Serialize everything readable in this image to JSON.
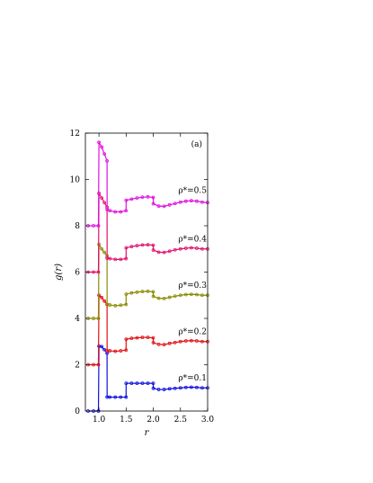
{
  "chart_data": {
    "type": "line",
    "panel_label": "(a)",
    "xlabel": "r",
    "ylabel": "g(r)",
    "xlim": [
      0.75,
      3.0
    ],
    "ylim": [
      0,
      12
    ],
    "xticks": [
      "1.0",
      "1.5",
      "2.0",
      "2.5",
      "3.0"
    ],
    "yticks": [
      "0",
      "2",
      "4",
      "6",
      "8",
      "10",
      "12"
    ],
    "series": [
      {
        "name": "ρ*=0.1",
        "color": "#1010e0",
        "offset": 0,
        "x": [
          0.8,
          0.9,
          0.99,
          1.0,
          1.05,
          1.1,
          1.149,
          1.15,
          1.2,
          1.3,
          1.4,
          1.499,
          1.5,
          1.6,
          1.7,
          1.8,
          1.9,
          1.999,
          2.0,
          2.1,
          2.2,
          2.3,
          2.4,
          2.5,
          2.6,
          2.7,
          2.8,
          2.9,
          3.0
        ],
        "y": [
          0,
          0,
          0,
          2.8,
          2.78,
          2.65,
          2.5,
          0.6,
          0.6,
          0.6,
          0.6,
          0.6,
          1.2,
          1.2,
          1.2,
          1.2,
          1.2,
          1.2,
          0.98,
          0.93,
          0.93,
          0.96,
          0.98,
          1.0,
          1.02,
          1.03,
          1.02,
          1.0,
          1.0
        ]
      },
      {
        "name": "ρ*=0.2",
        "color": "#e01010",
        "offset": 2,
        "x": [
          0.8,
          0.9,
          0.99,
          1.0,
          1.05,
          1.1,
          1.149,
          1.15,
          1.2,
          1.3,
          1.4,
          1.499,
          1.5,
          1.6,
          1.7,
          1.8,
          1.9,
          1.999,
          2.0,
          2.1,
          2.2,
          2.3,
          2.4,
          2.5,
          2.6,
          2.7,
          2.8,
          2.9,
          3.0
        ],
        "y": [
          2,
          2,
          2,
          5.0,
          4.9,
          4.75,
          4.6,
          2.6,
          2.6,
          2.58,
          2.6,
          2.63,
          3.1,
          3.14,
          3.16,
          3.18,
          3.18,
          3.16,
          2.95,
          2.88,
          2.87,
          2.92,
          2.96,
          3.0,
          3.03,
          3.04,
          3.03,
          3.0,
          3.0
        ]
      },
      {
        "name": "ρ*=0.3",
        "color": "#8a8a00",
        "offset": 4,
        "x": [
          0.8,
          0.9,
          0.99,
          1.0,
          1.05,
          1.1,
          1.149,
          1.15,
          1.2,
          1.3,
          1.4,
          1.499,
          1.5,
          1.6,
          1.7,
          1.8,
          1.9,
          1.999,
          2.0,
          2.1,
          2.2,
          2.3,
          2.4,
          2.5,
          2.6,
          2.7,
          2.8,
          2.9,
          3.0
        ],
        "y": [
          4,
          4,
          4,
          7.2,
          7.0,
          6.85,
          6.7,
          4.6,
          4.58,
          4.55,
          4.57,
          4.6,
          5.05,
          5.1,
          5.13,
          5.16,
          5.17,
          5.15,
          4.95,
          4.87,
          4.86,
          4.91,
          4.96,
          5.0,
          5.03,
          5.04,
          5.03,
          5.0,
          5.0
        ]
      },
      {
        "name": "ρ*=0.4",
        "color": "#e0106e",
        "offset": 6,
        "x": [
          0.8,
          0.9,
          0.99,
          1.0,
          1.05,
          1.1,
          1.149,
          1.15,
          1.2,
          1.3,
          1.4,
          1.499,
          1.5,
          1.6,
          1.7,
          1.8,
          1.9,
          1.999,
          2.0,
          2.1,
          2.2,
          2.3,
          2.4,
          2.5,
          2.6,
          2.7,
          2.8,
          2.9,
          3.0
        ],
        "y": [
          6,
          6,
          6,
          9.4,
          9.2,
          9.0,
          8.8,
          6.6,
          6.58,
          6.55,
          6.55,
          6.58,
          7.05,
          7.1,
          7.14,
          7.17,
          7.18,
          7.16,
          6.95,
          6.86,
          6.85,
          6.9,
          6.96,
          7.0,
          7.03,
          7.05,
          7.03,
          7.0,
          7.0
        ]
      },
      {
        "name": "ρ*=0.5",
        "color": "#e010e0",
        "offset": 8,
        "x": [
          0.8,
          0.9,
          0.99,
          1.0,
          1.05,
          1.1,
          1.149,
          1.15,
          1.2,
          1.3,
          1.4,
          1.499,
          1.5,
          1.6,
          1.7,
          1.8,
          1.9,
          1.999,
          2.0,
          2.1,
          2.2,
          2.3,
          2.4,
          2.5,
          2.6,
          2.7,
          2.8,
          2.9,
          3.0
        ],
        "y": [
          8,
          8,
          8,
          11.6,
          11.4,
          11.1,
          10.8,
          8.7,
          8.65,
          8.6,
          8.6,
          8.65,
          9.1,
          9.15,
          9.2,
          9.23,
          9.25,
          9.22,
          8.95,
          8.85,
          8.84,
          8.9,
          8.96,
          9.02,
          9.06,
          9.08,
          9.06,
          9.02,
          9.0
        ]
      }
    ],
    "series_label_y": [
      1.2,
      3.2,
      5.2,
      7.2,
      9.3
    ],
    "vertical_line_x": 1.15,
    "grid": false,
    "legend": "none"
  }
}
